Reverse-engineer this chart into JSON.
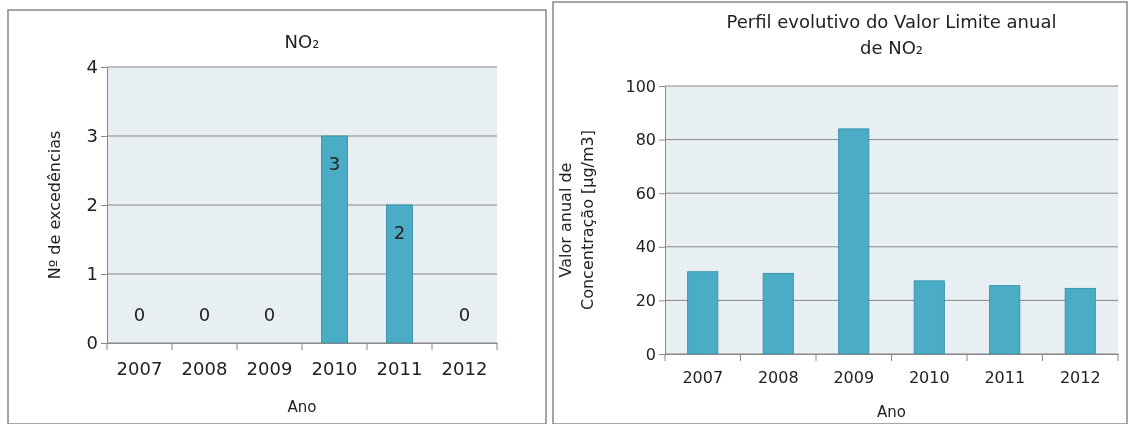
{
  "chart_data": [
    {
      "type": "bar",
      "title": "NO₂",
      "xlabel": "Ano",
      "ylabel": "Nº de excedências",
      "categories": [
        "2007",
        "2008",
        "2009",
        "2010",
        "2011",
        "2012"
      ],
      "values": [
        0,
        0,
        0,
        3,
        2,
        0
      ],
      "color": "#4bacc6",
      "ylim": [
        0,
        4
      ],
      "yticks": [
        0,
        1,
        2,
        3,
        4
      ],
      "grid": "y",
      "data_labels": true
    },
    {
      "type": "bar",
      "title": "Perfil evolutivo do Valor Limite anual de NO₂",
      "xlabel": "Ano",
      "ylabel": "Valor anual de Concentração [µg/m3]",
      "categories": [
        "2007",
        "2008",
        "2009",
        "2010",
        "2011",
        "2012"
      ],
      "values": [
        30.7,
        30.1,
        84,
        27.3,
        25.5,
        24.5
      ],
      "color": "#4bacc6",
      "ylim": [
        0,
        100
      ],
      "yticks": [
        0,
        20,
        40,
        60,
        80,
        100
      ],
      "grid": "y"
    }
  ]
}
